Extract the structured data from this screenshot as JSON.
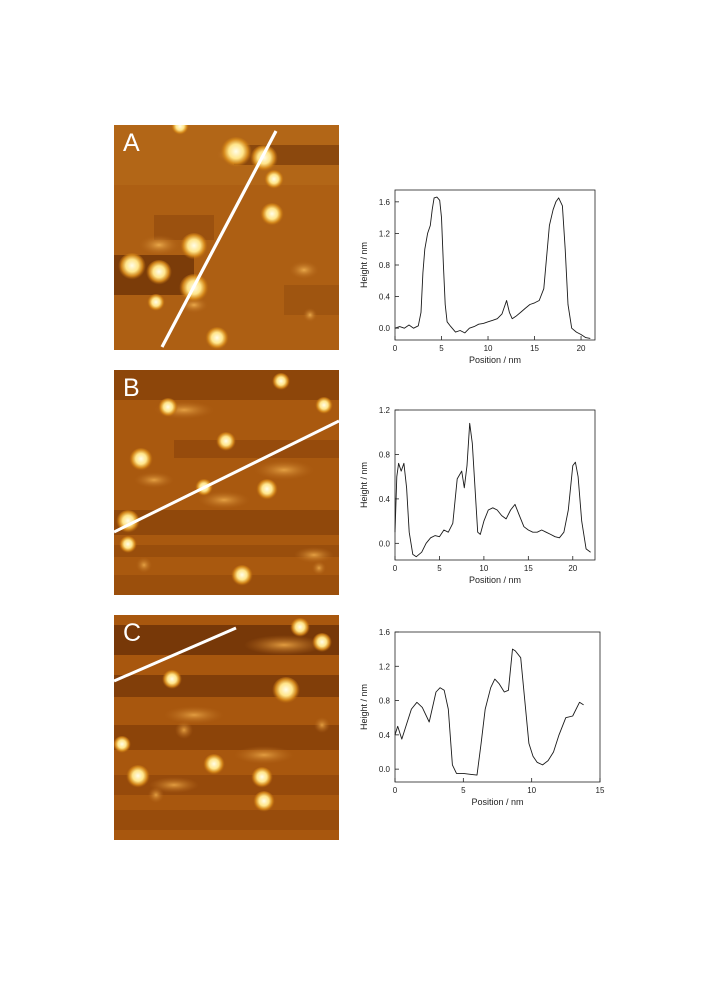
{
  "figure": {
    "panels": [
      {
        "letter": "A",
        "chart_data": {
          "type": "line",
          "xlabel": "Position / nm",
          "ylabel": "Height / nm",
          "xlim": [
            0,
            21.5
          ],
          "ylim": [
            -0.15,
            1.75
          ],
          "xticks": [
            0,
            5,
            10,
            15,
            20
          ],
          "yticks": [
            0.0,
            0.4,
            0.8,
            1.2,
            1.6
          ],
          "ytick_labels": [
            "0.0",
            "0.4",
            "0.8",
            "1.2",
            "1.6"
          ],
          "grid": false,
          "series": [
            {
              "x": [
                0,
                0.5,
                1,
                1.5,
                2,
                2.5,
                2.8,
                3.0,
                3.2,
                3.5,
                3.8,
                4.0,
                4.2,
                4.5,
                4.8,
                5.0,
                5.2,
                5.4,
                5.6,
                6.0,
                6.5,
                7,
                7.5,
                8,
                8.5,
                9,
                9.5,
                10,
                10.5,
                11,
                11.5,
                12,
                12.3,
                12.6,
                13,
                13.5,
                14,
                14.5,
                15,
                15.5,
                16,
                16.3,
                16.6,
                17,
                17.3,
                17.6,
                18,
                18.3,
                18.6,
                19,
                19.5,
                20,
                20.5,
                21
              ],
              "y": [
                0.0,
                0.02,
                0.0,
                0.04,
                0.0,
                0.03,
                0.2,
                0.7,
                1.0,
                1.2,
                1.3,
                1.5,
                1.65,
                1.66,
                1.62,
                1.4,
                0.8,
                0.3,
                0.08,
                0.02,
                -0.05,
                -0.03,
                -0.06,
                0.0,
                0.02,
                0.05,
                0.06,
                0.08,
                0.1,
                0.12,
                0.18,
                0.35,
                0.2,
                0.12,
                0.15,
                0.2,
                0.25,
                0.3,
                0.32,
                0.35,
                0.5,
                0.9,
                1.3,
                1.5,
                1.6,
                1.65,
                1.55,
                1.0,
                0.3,
                0.0,
                -0.05,
                -0.08,
                -0.12,
                -0.13
              ]
            }
          ]
        }
      },
      {
        "letter": "B",
        "chart_data": {
          "type": "line",
          "xlabel": "Position / nm",
          "ylabel": "Height / nm",
          "xlim": [
            0,
            22.5
          ],
          "ylim": [
            -0.15,
            1.2
          ],
          "xticks": [
            0,
            5,
            10,
            15,
            20
          ],
          "yticks": [
            0.0,
            0.4,
            0.8,
            1.2
          ],
          "ytick_labels": [
            "0.0",
            "0.4",
            "0.8",
            "1.2"
          ],
          "grid": false,
          "series": [
            {
              "x": [
                0,
                0.2,
                0.4,
                0.7,
                1.0,
                1.3,
                1.6,
                2.0,
                2.4,
                3,
                3.5,
                4,
                4.5,
                5,
                5.5,
                6,
                6.5,
                7,
                7.5,
                7.8,
                8.1,
                8.4,
                8.7,
                9.0,
                9.3,
                9.6,
                10,
                10.5,
                11,
                11.5,
                12,
                12.5,
                13,
                13.5,
                14,
                14.5,
                15,
                15.5,
                16,
                16.5,
                17,
                17.5,
                18,
                18.5,
                19,
                19.5,
                20,
                20.3,
                20.6,
                21,
                21.5,
                22
              ],
              "y": [
                0.1,
                0.6,
                0.72,
                0.65,
                0.72,
                0.5,
                0.1,
                -0.1,
                -0.12,
                -0.08,
                0.0,
                0.05,
                0.07,
                0.06,
                0.12,
                0.1,
                0.18,
                0.58,
                0.65,
                0.5,
                0.7,
                1.08,
                0.9,
                0.5,
                0.1,
                0.08,
                0.2,
                0.3,
                0.32,
                0.3,
                0.25,
                0.22,
                0.3,
                0.35,
                0.25,
                0.15,
                0.12,
                0.1,
                0.1,
                0.12,
                0.1,
                0.08,
                0.06,
                0.05,
                0.1,
                0.3,
                0.7,
                0.73,
                0.6,
                0.2,
                -0.05,
                -0.08
              ]
            }
          ]
        }
      },
      {
        "letter": "C",
        "chart_data": {
          "type": "line",
          "xlabel": "Position / nm",
          "ylabel": "Height / nm",
          "xlim": [
            0,
            15
          ],
          "ylim": [
            -0.15,
            1.6
          ],
          "xticks": [
            0,
            5,
            10,
            15
          ],
          "yticks": [
            0.0,
            0.4,
            0.8,
            1.2,
            1.6
          ],
          "ytick_labels": [
            "0.0",
            "0.4",
            "0.8",
            "1.2",
            "1.6"
          ],
          "grid": false,
          "series": [
            {
              "x": [
                0,
                0.2,
                0.5,
                0.8,
                1.2,
                1.6,
                2.0,
                2.5,
                3.0,
                3.3,
                3.6,
                3.9,
                4.2,
                4.5,
                5,
                5.5,
                6,
                6.3,
                6.6,
                7,
                7.3,
                7.6,
                8.0,
                8.3,
                8.6,
                8.8,
                9.2,
                9.5,
                9.8,
                10.1,
                10.4,
                10.8,
                11.2,
                11.6,
                12,
                12.5,
                13,
                13.5,
                13.8
              ],
              "y": [
                0.4,
                0.5,
                0.35,
                0.5,
                0.7,
                0.78,
                0.72,
                0.55,
                0.9,
                0.95,
                0.92,
                0.7,
                0.05,
                -0.05,
                -0.05,
                -0.06,
                -0.07,
                0.3,
                0.7,
                0.95,
                1.05,
                1.0,
                0.9,
                0.92,
                1.4,
                1.38,
                1.3,
                0.8,
                0.3,
                0.15,
                0.08,
                0.05,
                0.1,
                0.2,
                0.4,
                0.6,
                0.62,
                0.78,
                0.75
              ]
            }
          ]
        }
      }
    ]
  }
}
